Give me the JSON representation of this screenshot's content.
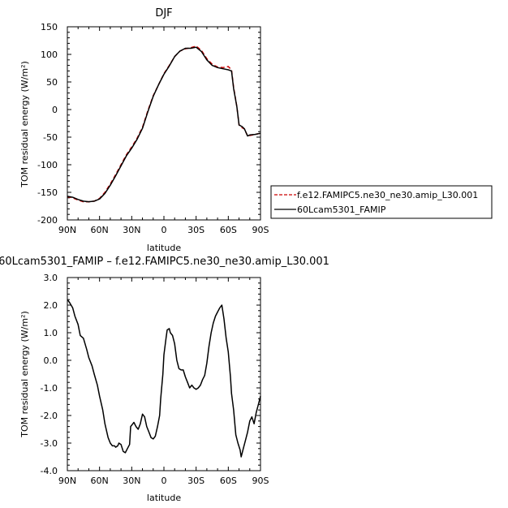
{
  "chart_data": [
    {
      "type": "line",
      "title": "DJF",
      "xlabel": "latitude",
      "ylabel": "TOM residual energy  (W/m²)",
      "xlim": [
        90,
        -90
      ],
      "ylim": [
        -200,
        150
      ],
      "x_tick_values": [
        90,
        60,
        30,
        0,
        -30,
        -60,
        -90
      ],
      "x_tick_labels": [
        "90N",
        "60N",
        "30N",
        "0",
        "30S",
        "60S",
        "90S"
      ],
      "y_tick_values": [
        150,
        100,
        50,
        0,
        -50,
        -100,
        -150,
        -200
      ],
      "y_tick_labels": [
        "150",
        "100",
        "50",
        "0",
        "-50",
        "-100",
        "-150",
        "-200"
      ],
      "legend_position": "right, outside plot",
      "series": [
        {
          "name": "f.e12.FAMIPC5.ne30_ne30.amip_L30.001",
          "color": "#cc0000",
          "dash": "dashed",
          "x": [
            90,
            85,
            80,
            75,
            70,
            65,
            60,
            55,
            50,
            45,
            40,
            35,
            30,
            25,
            20,
            15,
            10,
            5,
            0,
            -5,
            -10,
            -15,
            -20,
            -25,
            -30,
            -35,
            -40,
            -45,
            -50,
            -55,
            -60,
            -63,
            -65,
            -68,
            -70,
            -73,
            -75,
            -78,
            -80,
            -85,
            -90
          ],
          "y": [
            -158,
            -160,
            -164,
            -167,
            -167,
            -166,
            -161,
            -150,
            -135,
            -118,
            -100,
            -82,
            -68,
            -52,
            -32,
            -2,
            25,
            45,
            65,
            80,
            96,
            106,
            110,
            112,
            115,
            107,
            92,
            82,
            77,
            76,
            78,
            72,
            40,
            5,
            -28,
            -33,
            -35,
            -48,
            -47,
            -45,
            -43
          ]
        },
        {
          "name": "60Lcam5301_FAMIP",
          "color": "#000000",
          "dash": "solid",
          "x": [
            90,
            85,
            80,
            75,
            70,
            65,
            60,
            55,
            50,
            45,
            40,
            35,
            30,
            25,
            20,
            15,
            10,
            5,
            0,
            -5,
            -10,
            -15,
            -20,
            -25,
            -30,
            -35,
            -40,
            -45,
            -50,
            -55,
            -60,
            -63,
            -65,
            -68,
            -70,
            -73,
            -75,
            -78,
            -80,
            -85,
            -90
          ],
          "y": [
            -157,
            -159,
            -163,
            -166,
            -167,
            -166,
            -162,
            -152,
            -137,
            -120,
            -102,
            -84,
            -70,
            -54,
            -34,
            -4,
            24,
            45,
            64,
            79,
            96,
            106,
            111,
            111,
            113,
            105,
            90,
            80,
            76,
            74,
            72,
            70,
            38,
            5,
            -28,
            -31,
            -35,
            -48,
            -46,
            -45,
            -43
          ]
        }
      ]
    },
    {
      "type": "line",
      "title": "60Lcam5301_FAMIP – f.e12.FAMIPC5.ne30_ne30.amip_L30.001",
      "xlabel": "latitude",
      "ylabel": "TOM residual energy  (W/m²)",
      "xlim": [
        90,
        -90
      ],
      "ylim": [
        -4.0,
        3.0
      ],
      "x_tick_values": [
        90,
        60,
        30,
        0,
        -30,
        -60,
        -90
      ],
      "x_tick_labels": [
        "90N",
        "60N",
        "30N",
        "0",
        "30S",
        "60S",
        "90S"
      ],
      "y_tick_values": [
        3.0,
        2.0,
        1.0,
        0.0,
        -1.0,
        -2.0,
        -3.0,
        -4.0
      ],
      "y_tick_labels": [
        "3.0",
        "2.0",
        "1.0",
        "0.0",
        "-1.0",
        "-2.0",
        "-3.0",
        "-4.0"
      ],
      "series": [
        {
          "color": "#000000",
          "dash": "solid",
          "x": [
            90,
            88,
            85,
            83,
            80,
            78,
            75,
            72,
            70,
            67,
            65,
            62,
            60,
            57,
            55,
            52,
            50,
            48,
            46,
            45,
            43,
            42,
            40,
            38,
            36,
            34,
            32,
            31,
            29,
            28,
            26,
            24,
            22,
            20,
            18,
            16,
            14,
            12,
            10,
            8,
            6,
            4,
            3,
            1,
            0,
            -2,
            -3,
            -5,
            -6,
            -8,
            -10,
            -12,
            -14,
            -16,
            -18,
            -20,
            -22,
            -24,
            -26,
            -28,
            -30,
            -32,
            -34,
            -36,
            -38,
            -40,
            -42,
            -44,
            -46,
            -48,
            -50,
            -52,
            -54,
            -56,
            -58,
            -60,
            -62,
            -63,
            -65,
            -67,
            -69,
            -71,
            -72,
            -74,
            -76,
            -78,
            -80,
            -82,
            -84,
            -86,
            -88,
            -90
          ],
          "y": [
            2.2,
            2.1,
            1.9,
            1.6,
            1.3,
            0.9,
            0.8,
            0.4,
            0.1,
            -0.2,
            -0.5,
            -0.9,
            -1.3,
            -1.8,
            -2.3,
            -2.8,
            -3.0,
            -3.1,
            -3.1,
            -3.15,
            -3.1,
            -3.0,
            -3.05,
            -3.3,
            -3.35,
            -3.2,
            -3.05,
            -2.4,
            -2.3,
            -2.25,
            -2.4,
            -2.5,
            -2.3,
            -1.95,
            -2.05,
            -2.4,
            -2.6,
            -2.8,
            -2.85,
            -2.75,
            -2.4,
            -2.0,
            -1.4,
            -0.5,
            0.2,
            0.8,
            1.1,
            1.15,
            1.0,
            0.9,
            0.6,
            0.0,
            -0.3,
            -0.35,
            -0.35,
            -0.6,
            -0.8,
            -1.0,
            -0.9,
            -1.0,
            -1.05,
            -1.0,
            -0.9,
            -0.7,
            -0.55,
            -0.1,
            0.5,
            1.0,
            1.35,
            1.6,
            1.75,
            1.9,
            2.0,
            1.5,
            0.8,
            0.3,
            -0.6,
            -1.2,
            -1.8,
            -2.7,
            -3.0,
            -3.25,
            -3.5,
            -3.2,
            -2.9,
            -2.6,
            -2.2,
            -2.05,
            -2.3,
            -1.9,
            -1.6,
            -1.3
          ]
        }
      ]
    }
  ]
}
